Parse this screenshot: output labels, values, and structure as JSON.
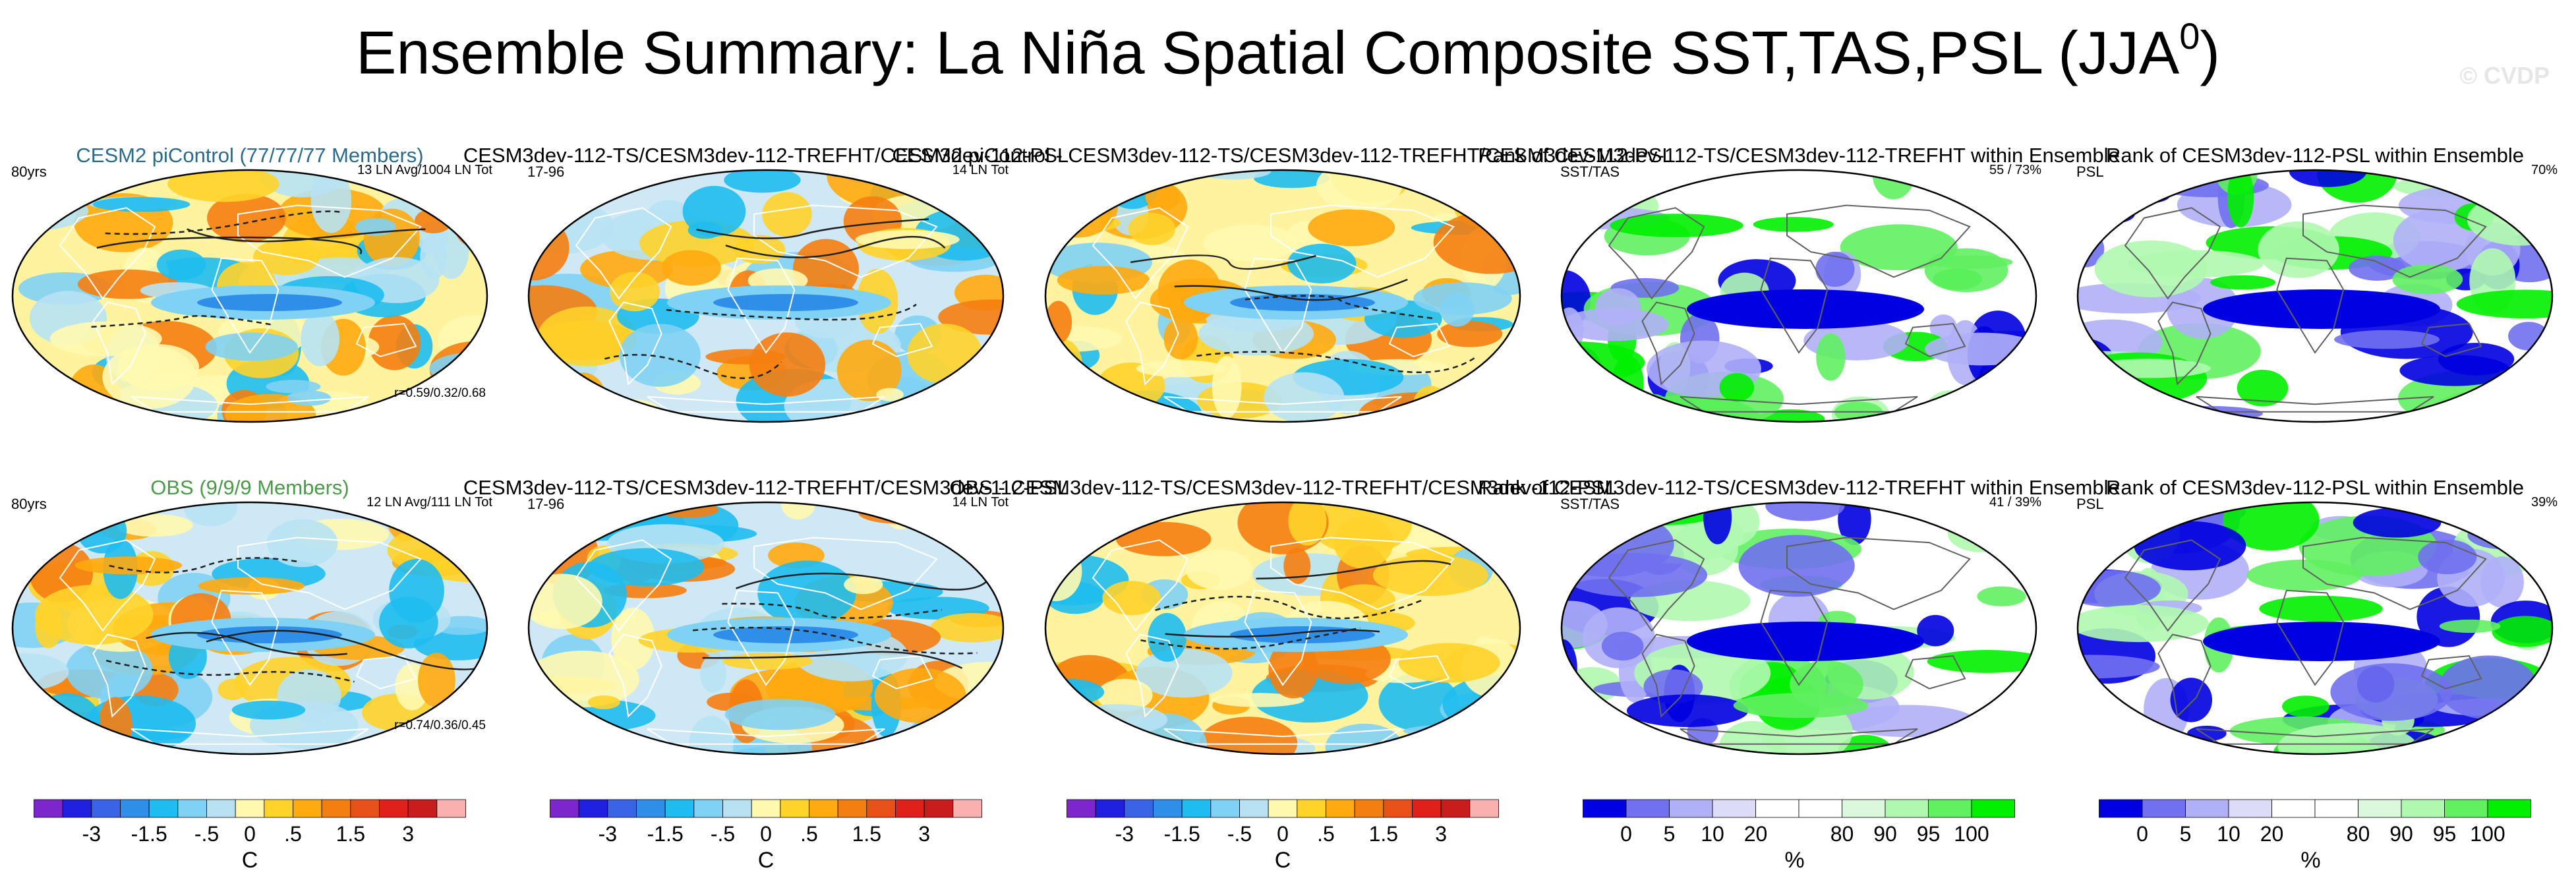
{
  "title": {
    "main": "Ensemble Summary: La Niña Spatial Composite SST,TAS,PSL (JJA",
    "sup": "0",
    "close": ")"
  },
  "watermark": "© CVDP",
  "colors": {
    "diverging": [
      "#7d26cd",
      "#2020e0",
      "#3a64e8",
      "#2e8ee8",
      "#1ebcf0",
      "#7fd2f4",
      "#b7e2f4",
      "#fff9b0",
      "#ffd32a",
      "#ffaa10",
      "#f57e10",
      "#e8521a",
      "#e0201a",
      "#c81d1d",
      "#fbb0b0"
    ],
    "rank": [
      "#0000e0",
      "#7070f0",
      "#b0b0f8",
      "#dcdcf8",
      "#ffffff",
      "#ffffff",
      "#dcf8dc",
      "#b0f8b0",
      "#60f060",
      "#00f000"
    ],
    "ocean_bg": "#fffaa8",
    "ocean_blue": "#b7e2f4",
    "land_line": "#ffffff",
    "contour": "#202020"
  },
  "chart_data": [
    {
      "type": "map",
      "panel": "row1-col1",
      "title": "CESM2 piControl (77/77/77 Members)",
      "title_color": "#2a6a8a",
      "left_label": "80yrs",
      "right_label": "13 LN Avg/1004 LN Tot",
      "bottom_label": "r=0.59/0.32/0.68",
      "fill": "diverging"
    },
    {
      "type": "map",
      "panel": "row1-col2",
      "title": "CESM3dev-112-TS/CESM3dev-112-TREFHT/CESM3dev-112-PSL",
      "left_label": "17-96",
      "right_label": "14 LN Tot",
      "fill": "diverging"
    },
    {
      "type": "map",
      "panel": "row1-col3",
      "title": "CESM2 piControl - CESM3dev-112-TS/CESM3dev-112-TREFHT/CESM3dev-112-PSL",
      "fill": "diverging"
    },
    {
      "type": "map",
      "panel": "row1-col4",
      "title": "Rank of CESM3dev-112-TS/CESM3dev-112-TREFHT within Ensemble",
      "left_label": "SST/TAS",
      "right_label": "55 / 73%",
      "fill": "rank"
    },
    {
      "type": "map",
      "panel": "row1-col5",
      "title": "Rank of CESM3dev-112-PSL within Ensemble",
      "left_label": "PSL",
      "right_label": "70%",
      "fill": "rank"
    },
    {
      "type": "map",
      "panel": "row2-col1",
      "title": "OBS (9/9/9 Members)",
      "title_color": "#4a9a4a",
      "left_label": "80yrs",
      "right_label": "12 LN Avg/111 LN Tot",
      "bottom_label": "r=0.74/0.36/0.45",
      "fill": "diverging"
    },
    {
      "type": "map",
      "panel": "row2-col2",
      "title": "CESM3dev-112-TS/CESM3dev-112-TREFHT/CESM3dev-112-PSL",
      "left_label": "17-96",
      "right_label": "14 LN Tot",
      "fill": "diverging"
    },
    {
      "type": "map",
      "panel": "row2-col3",
      "title": "OBS - CESM3dev-112-TS/CESM3dev-112-TREFHT/CESM3dev-112-PSL",
      "fill": "diverging"
    },
    {
      "type": "map",
      "panel": "row2-col4",
      "title": "Rank of CESM3dev-112-TS/CESM3dev-112-TREFHT within Ensemble",
      "left_label": "SST/TAS",
      "right_label": "41 / 39%",
      "fill": "rank"
    },
    {
      "type": "map",
      "panel": "row2-col5",
      "title": "Rank of CESM3dev-112-PSL within Ensemble",
      "left_label": "PSL",
      "right_label": "39%",
      "fill": "rank"
    }
  ],
  "colorbars": [
    {
      "kind": "diverging",
      "ticks": [
        "-3",
        "-1.5",
        "-.5",
        "0",
        ".5",
        "1.5",
        "3"
      ],
      "unit": "C"
    },
    {
      "kind": "diverging",
      "ticks": [
        "-3",
        "-1.5",
        "-.5",
        "0",
        ".5",
        "1.5",
        "3"
      ],
      "unit": "C"
    },
    {
      "kind": "diverging",
      "ticks": [
        "-3",
        "-1.5",
        "-.5",
        "0",
        ".5",
        "1.5",
        "3"
      ],
      "unit": "C"
    },
    {
      "kind": "rank",
      "ticks": [
        "0",
        "5",
        "10",
        "20",
        "80",
        "90",
        "95",
        "100"
      ],
      "unit": "%"
    },
    {
      "kind": "rank",
      "ticks": [
        "0",
        "5",
        "10",
        "20",
        "80",
        "90",
        "95",
        "100"
      ],
      "unit": "%"
    }
  ]
}
